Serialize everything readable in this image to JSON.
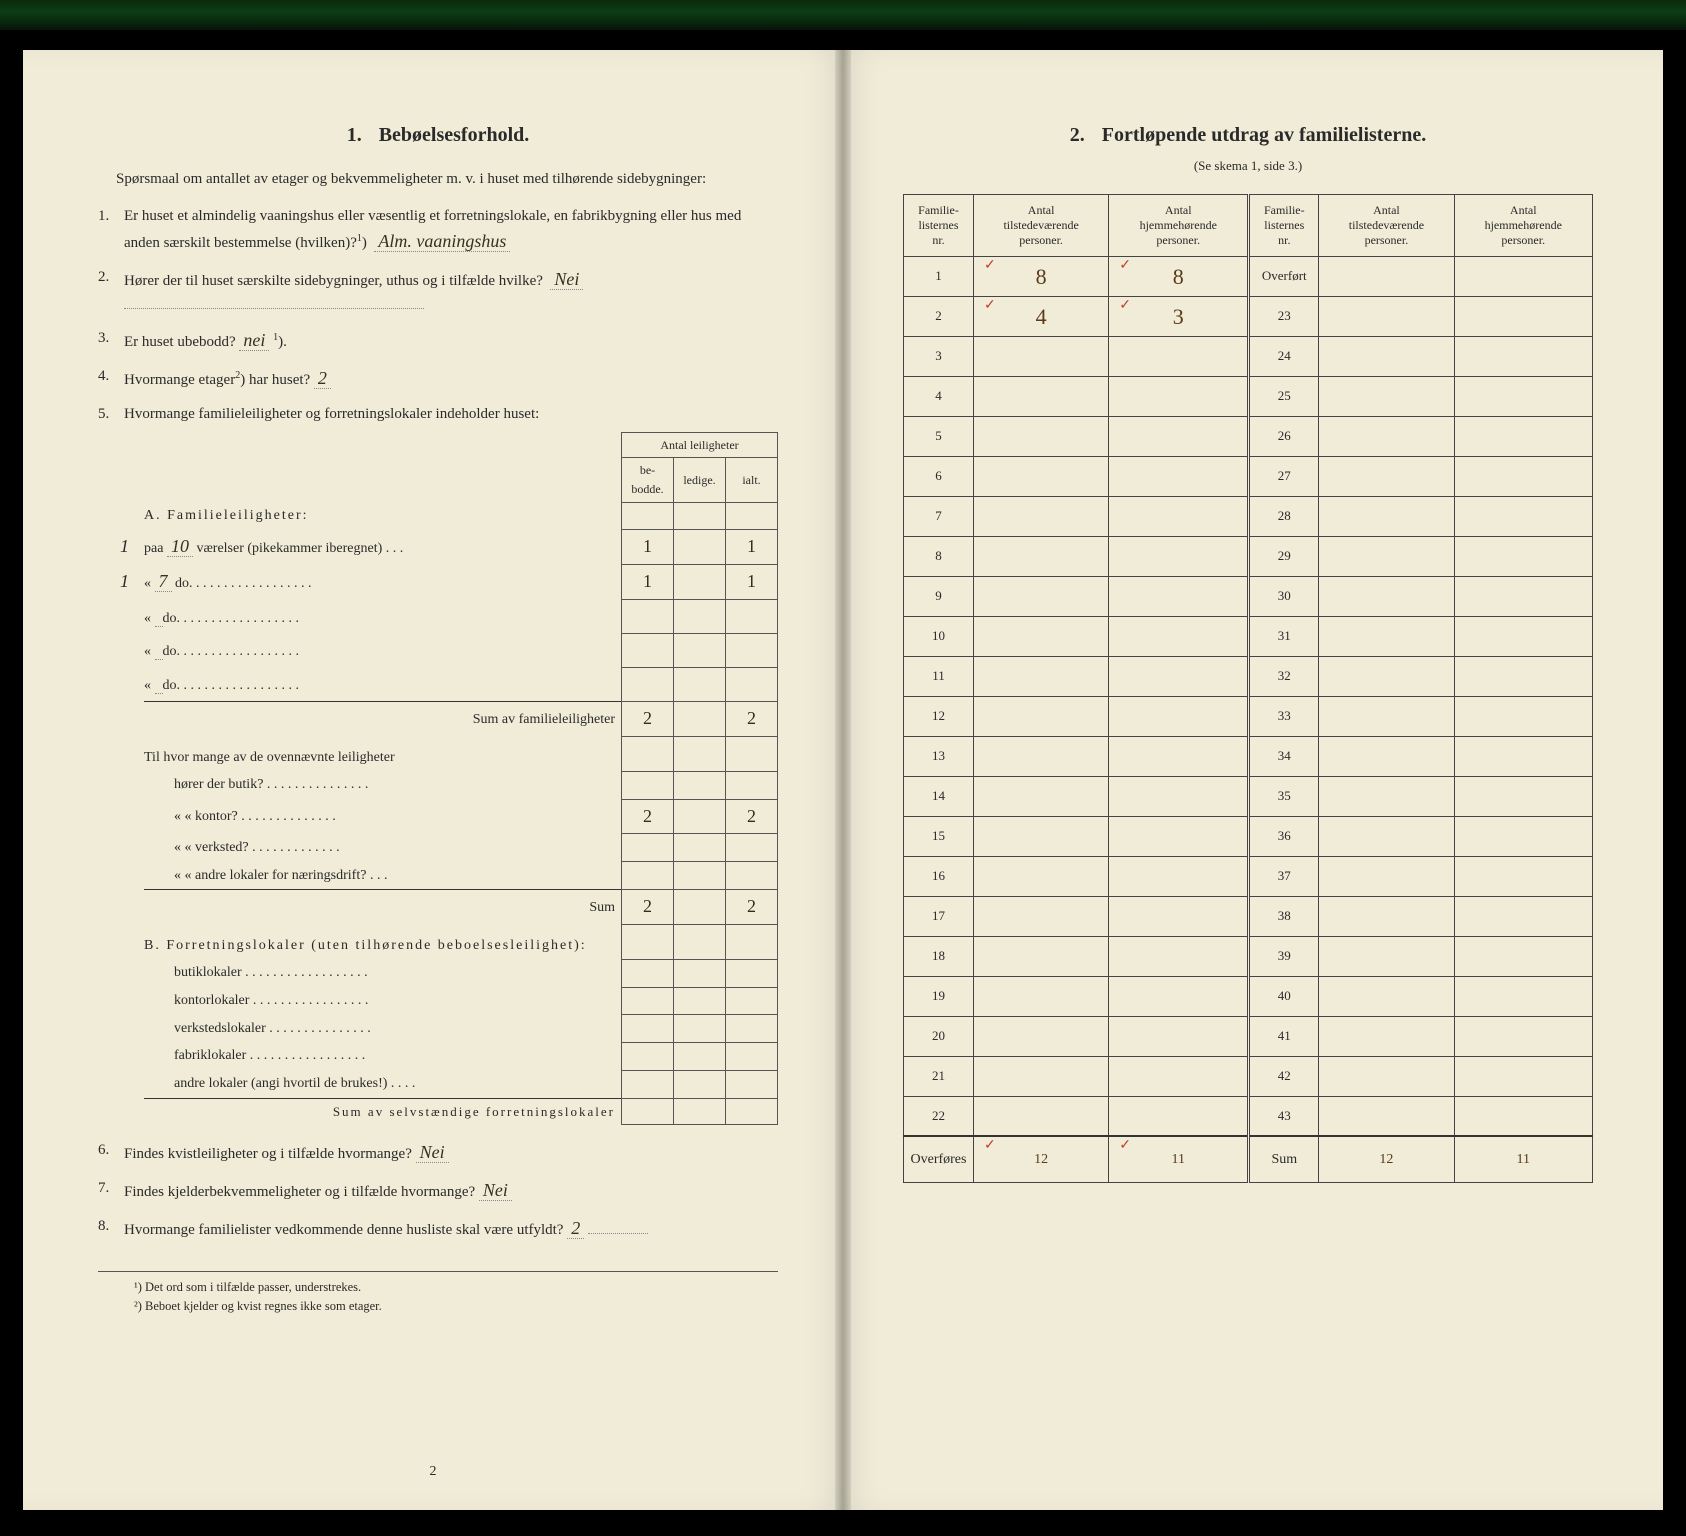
{
  "colors": {
    "paper": "#f0ecd8",
    "ink": "#2a2a2a",
    "handwriting": "#3a2a18",
    "redmark": "#c04030",
    "border": "#444444",
    "top_stripe_dark": "#061508",
    "top_stripe_green": "#0d3d15"
  },
  "left": {
    "section_number": "1.",
    "section_title": "Bebøelsesforhold.",
    "intro": "Spørsmaal om antallet av etager og bekvemmeligheter m. v. i huset med tilhørende sidebygninger:",
    "q1": {
      "num": "1.",
      "text_a": "Er huset et almindelig vaaningshus eller væsentlig et forretningslokale, en fabrikbygning eller hus med anden særskilt bestemmelse (hvilken)?",
      "sup": "1",
      "answer": "Alm. vaaningshus"
    },
    "q2": {
      "num": "2.",
      "text": "Hører der til huset særskilte sidebygninger, uthus og i tilfælde hvilke?",
      "answer": "Nei"
    },
    "q3": {
      "num": "3.",
      "text": "Er huset ubebodd?",
      "answer": "nei",
      "sup": "1"
    },
    "q4": {
      "num": "4.",
      "text_a": "Hvormange etager",
      "sup": "2",
      "text_b": ") har huset?",
      "answer": "2"
    },
    "q5": {
      "num": "5.",
      "text": "Hvormange familieleiligheter og forretningslokaler indeholder huset:"
    },
    "table_header_group": "Antal leiligheter",
    "table_headers": [
      "be-\nbodde.",
      "ledige.",
      "ialt."
    ],
    "sectionA_label": "A. Familieleiligheter:",
    "rowsA": [
      {
        "margin": "1",
        "label_pre": "paa",
        "rooms": "10",
        "label_post": "værelser (pikekammer iberegnet) . . .",
        "bebodde": "1",
        "ledige": "",
        "ialt": "1"
      },
      {
        "margin": "1",
        "label_pre": "«",
        "rooms": "7",
        "label_post": "do.  . . . . . . . . . . . . . . . . .",
        "bebodde": "1",
        "ledige": "",
        "ialt": "1"
      },
      {
        "margin": "",
        "label_pre": "«",
        "rooms": "",
        "label_post": "do.  . . . . . . . . . . . . . . . . .",
        "bebodde": "",
        "ledige": "",
        "ialt": ""
      },
      {
        "margin": "",
        "label_pre": "«",
        "rooms": "",
        "label_post": "do.  . . . . . . . . . . . . . . . . .",
        "bebodde": "",
        "ledige": "",
        "ialt": ""
      },
      {
        "margin": "",
        "label_pre": "«",
        "rooms": "",
        "label_post": "do.  . . . . . . . . . . . . . . . . .",
        "bebodde": "",
        "ledige": "",
        "ialt": ""
      }
    ],
    "sumA_label": "Sum av familieleiligheter",
    "sumA": {
      "bebodde": "2",
      "ledige": "",
      "ialt": "2"
    },
    "between_label": "Til hvor mange av de ovennævnte leiligheter",
    "assoc_rows": [
      {
        "label": "hører der butik? . . . . . . . . . . . . . . .",
        "bebodde": "",
        "ledige": "",
        "ialt": ""
      },
      {
        "label": "«      « kontor? . . . . . . . . . . . . . .",
        "bebodde": "2",
        "ledige": "",
        "ialt": "2"
      },
      {
        "label": "«      « verksted? . . . . . . . . . . . . .",
        "bebodde": "",
        "ledige": "",
        "ialt": ""
      },
      {
        "label": "«      « andre lokaler for næringsdrift? . . .",
        "bebodde": "",
        "ledige": "",
        "ialt": ""
      }
    ],
    "sum_assoc_label": "Sum",
    "sum_assoc": {
      "bebodde": "2",
      "ledige": "",
      "ialt": "2"
    },
    "sectionB_label": "B. Forretningslokaler (uten tilhørende beboelsesleilighet):",
    "rowsB": [
      {
        "label": "butiklokaler . . . . . . . . . . . . . . . . . .",
        "bebodde": "",
        "ledige": "",
        "ialt": ""
      },
      {
        "label": "kontorlokaler . . . . . . . . . . . . . . . . .",
        "bebodde": "",
        "ledige": "",
        "ialt": ""
      },
      {
        "label": "verkstedslokaler . . . . . . . . . . . . . . .",
        "bebodde": "",
        "ledige": "",
        "ialt": ""
      },
      {
        "label": "fabriklokaler . . . . . . . . . . . . . . . . .",
        "bebodde": "",
        "ledige": "",
        "ialt": ""
      },
      {
        "label": "andre lokaler (angi hvortil de brukes!) . . . .",
        "bebodde": "",
        "ledige": "",
        "ialt": ""
      }
    ],
    "sumB_label": "Sum av selvstændige forretningslokaler",
    "q6": {
      "num": "6.",
      "text": "Findes kvistleiligheter og i tilfælde hvormange?",
      "answer": "Nei"
    },
    "q7": {
      "num": "7.",
      "text": "Findes kjelderbekvemmeligheter og i tilfælde hvormange?",
      "answer": "Nei"
    },
    "q8": {
      "num": "8.",
      "text": "Hvormange familielister vedkommende denne husliste skal være utfyldt?",
      "answer": "2"
    },
    "footnote1": "¹) Det ord som i tilfælde passer, understrekes.",
    "footnote2": "²) Beboet kjelder og kvist regnes ikke som etager.",
    "pagenum": "2"
  },
  "right": {
    "section_number": "2.",
    "section_title": "Fortløpende utdrag av familielisterne.",
    "subtitle": "(Se skema 1, side 3.)",
    "headers": [
      "Familie-\nlisternes\nnr.",
      "Antal\ntilstedeværende\npersoner.",
      "Antal\nhjemmehørende\npersoner.",
      "Familie-\nlisternes\nnr.",
      "Antal\ntilstedeværende\npersoner.",
      "Antal\nhjemmehørende\npersoner."
    ],
    "col_widths_pct": [
      10,
      20,
      20,
      10,
      20,
      20
    ],
    "rows": [
      {
        "l_nr": "1",
        "l_tilst": "8",
        "l_hjem": "8",
        "l_tick": "✓",
        "r_label": "Overført",
        "r_tilst": "",
        "r_hjem": ""
      },
      {
        "l_nr": "2",
        "l_tilst": "4",
        "l_hjem": "3",
        "l_tick": "✓",
        "r_label": "23",
        "r_tilst": "",
        "r_hjem": ""
      },
      {
        "l_nr": "3",
        "l_tilst": "",
        "l_hjem": "",
        "r_label": "24",
        "r_tilst": "",
        "r_hjem": ""
      },
      {
        "l_nr": "4",
        "l_tilst": "",
        "l_hjem": "",
        "r_label": "25",
        "r_tilst": "",
        "r_hjem": ""
      },
      {
        "l_nr": "5",
        "l_tilst": "",
        "l_hjem": "",
        "r_label": "26",
        "r_tilst": "",
        "r_hjem": ""
      },
      {
        "l_nr": "6",
        "l_tilst": "",
        "l_hjem": "",
        "r_label": "27",
        "r_tilst": "",
        "r_hjem": ""
      },
      {
        "l_nr": "7",
        "l_tilst": "",
        "l_hjem": "",
        "r_label": "28",
        "r_tilst": "",
        "r_hjem": ""
      },
      {
        "l_nr": "8",
        "l_tilst": "",
        "l_hjem": "",
        "r_label": "29",
        "r_tilst": "",
        "r_hjem": ""
      },
      {
        "l_nr": "9",
        "l_tilst": "",
        "l_hjem": "",
        "r_label": "30",
        "r_tilst": "",
        "r_hjem": ""
      },
      {
        "l_nr": "10",
        "l_tilst": "",
        "l_hjem": "",
        "r_label": "31",
        "r_tilst": "",
        "r_hjem": ""
      },
      {
        "l_nr": "11",
        "l_tilst": "",
        "l_hjem": "",
        "r_label": "32",
        "r_tilst": "",
        "r_hjem": ""
      },
      {
        "l_nr": "12",
        "l_tilst": "",
        "l_hjem": "",
        "r_label": "33",
        "r_tilst": "",
        "r_hjem": ""
      },
      {
        "l_nr": "13",
        "l_tilst": "",
        "l_hjem": "",
        "r_label": "34",
        "r_tilst": "",
        "r_hjem": ""
      },
      {
        "l_nr": "14",
        "l_tilst": "",
        "l_hjem": "",
        "r_label": "35",
        "r_tilst": "",
        "r_hjem": ""
      },
      {
        "l_nr": "15",
        "l_tilst": "",
        "l_hjem": "",
        "r_label": "36",
        "r_tilst": "",
        "r_hjem": ""
      },
      {
        "l_nr": "16",
        "l_tilst": "",
        "l_hjem": "",
        "r_label": "37",
        "r_tilst": "",
        "r_hjem": ""
      },
      {
        "l_nr": "17",
        "l_tilst": "",
        "l_hjem": "",
        "r_label": "38",
        "r_tilst": "",
        "r_hjem": ""
      },
      {
        "l_nr": "18",
        "l_tilst": "",
        "l_hjem": "",
        "r_label": "39",
        "r_tilst": "",
        "r_hjem": ""
      },
      {
        "l_nr": "19",
        "l_tilst": "",
        "l_hjem": "",
        "r_label": "40",
        "r_tilst": "",
        "r_hjem": ""
      },
      {
        "l_nr": "20",
        "l_tilst": "",
        "l_hjem": "",
        "r_label": "41",
        "r_tilst": "",
        "r_hjem": ""
      },
      {
        "l_nr": "21",
        "l_tilst": "",
        "l_hjem": "",
        "r_label": "42",
        "r_tilst": "",
        "r_hjem": ""
      },
      {
        "l_nr": "22",
        "l_tilst": "",
        "l_hjem": "",
        "r_label": "43",
        "r_tilst": "",
        "r_hjem": ""
      }
    ],
    "footer": {
      "l_label": "Overføres",
      "l_tilst": "12",
      "l_hjem": "11",
      "r_label": "Sum",
      "r_tilst": "12",
      "r_hjem": "11"
    }
  }
}
